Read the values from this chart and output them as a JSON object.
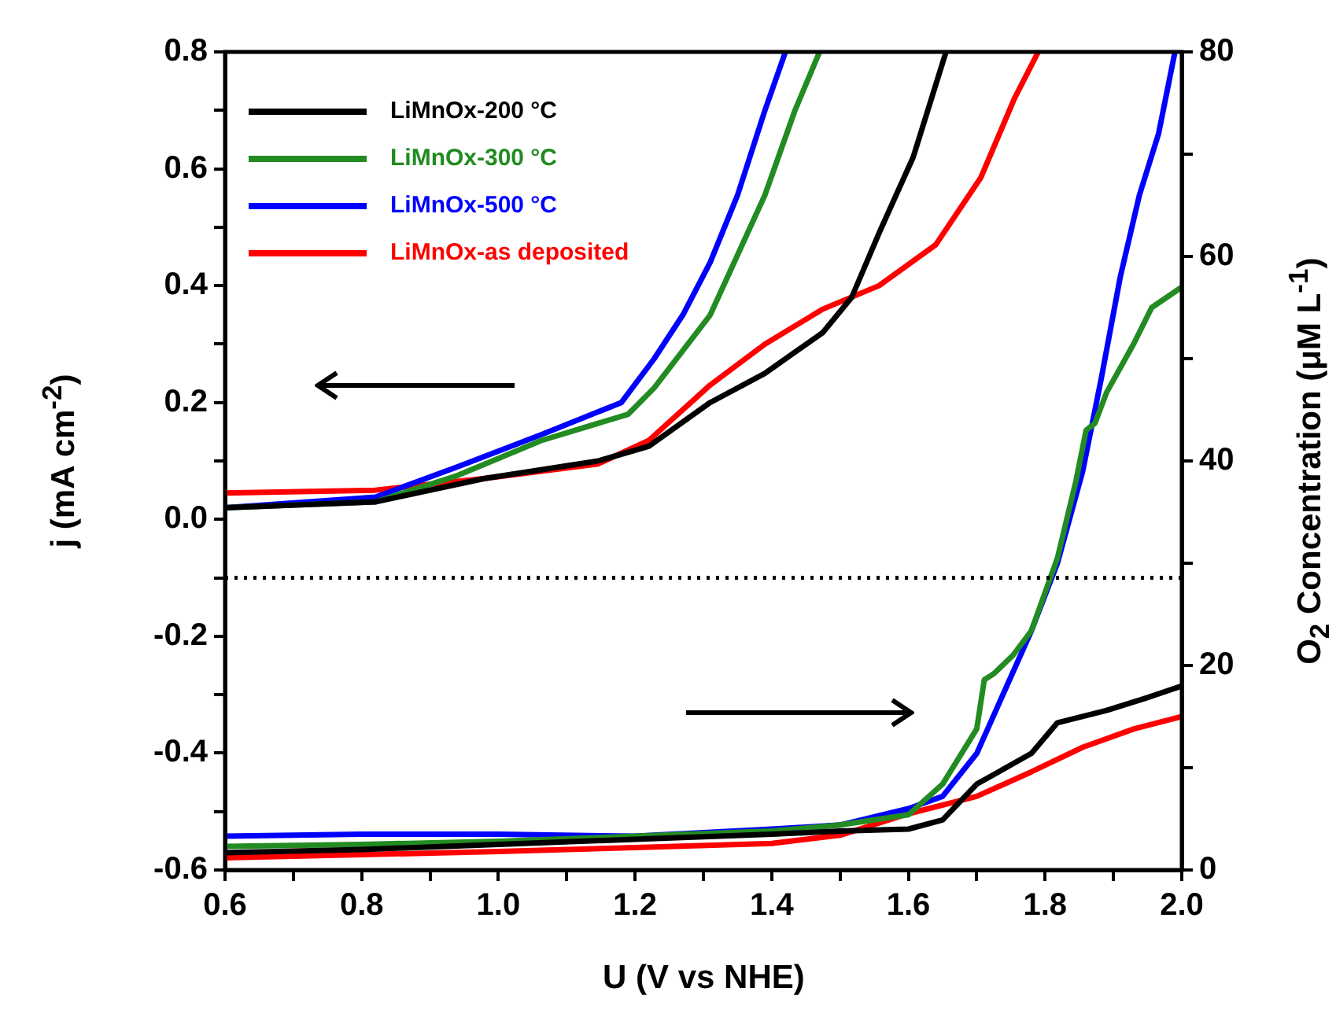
{
  "chart_data": {
    "type": "line",
    "xlabel": "U (V vs NHE)",
    "ylabel": "j (mA cm$^{-2}$)",
    "y2label": "O$_{2}$ Concentration (μM L$^{-1}$)",
    "xlim": [
      0.6,
      2.0
    ],
    "ylim": [
      -0.6,
      0.8
    ],
    "y2lim": [
      0,
      80
    ],
    "xticks": [
      0.6,
      {
        "value": 0.7,
        "label": null
      },
      0.8,
      {
        "value": 0.9,
        "label": null
      },
      {
        "value": 1.0,
        "label": "1.0"
      },
      {
        "value": 1.1,
        "label": null
      },
      1.2,
      {
        "value": 1.3,
        "label": null
      },
      1.4,
      {
        "value": 1.5,
        "label": null
      },
      1.6,
      {
        "value": 1.7,
        "label": null
      },
      1.8,
      {
        "value": 1.9,
        "label": null
      },
      {
        "value": 2.0,
        "label": "2.0"
      }
    ],
    "yticks": [
      -0.6,
      {
        "value": -0.5,
        "label": null
      },
      -0.4,
      {
        "value": -0.3,
        "label": null
      },
      -0.2,
      {
        "value": -0.1,
        "label": null
      },
      {
        "value": 0,
        "label": "0.0"
      },
      {
        "value": 0.1,
        "label": null
      },
      0.2,
      {
        "value": 0.3,
        "label": null
      },
      0.4,
      {
        "value": 0.5,
        "label": null
      },
      0.6,
      {
        "value": 0.7,
        "label": null
      },
      0.8
    ],
    "y2ticks": [
      0,
      {
        "value": 10,
        "label": null
      },
      20,
      {
        "value": 30,
        "label": null
      },
      40,
      {
        "value": 50,
        "label": null
      },
      60,
      {
        "value": 70,
        "label": null
      },
      80
    ],
    "grid": false,
    "legend": "top left",
    "marker": "none",
    "ref_lines": [
      {
        "axis": "y",
        "value": -0.1,
        "line_style": "dotted",
        "color": "#000000"
      }
    ],
    "series": [
      {
        "name": "LiMnOx-200 °C",
        "color": "#000000",
        "axis": "y",
        "x": [
          0.6,
          0.82,
          0.98,
          1.146,
          1.22,
          1.31,
          1.39,
          1.475,
          1.517,
          1.557,
          1.607,
          1.655
        ],
        "values": [
          0.02,
          0.03,
          0.07,
          0.1,
          0.125,
          0.2,
          0.25,
          0.32,
          0.38,
          0.49,
          0.62,
          0.8
        ]
      },
      {
        "name": "LiMnOx-300 °C",
        "color": "#228b22",
        "axis": "y",
        "x": [
          0.6,
          0.82,
          0.94,
          1.063,
          1.19,
          1.228,
          1.31,
          1.39,
          1.434,
          1.47
        ],
        "values": [
          0.02,
          0.03,
          0.075,
          0.135,
          0.18,
          0.225,
          0.35,
          0.555,
          0.7,
          0.8
        ]
      },
      {
        "name": "LiMnOx-500 °C",
        "color": "#0000ff",
        "axis": "y",
        "x": [
          0.6,
          0.82,
          0.94,
          1.063,
          1.18,
          1.228,
          1.27,
          1.31,
          1.35,
          1.39,
          1.42
        ],
        "values": [
          0.02,
          0.038,
          0.09,
          0.145,
          0.2,
          0.275,
          0.35,
          0.44,
          0.555,
          0.7,
          0.8
        ]
      },
      {
        "name": "LiMnOx-as deposited",
        "color": "#ff0000",
        "axis": "y",
        "x": [
          0.6,
          0.82,
          0.98,
          1.146,
          1.22,
          1.31,
          1.39,
          1.475,
          1.557,
          1.64,
          1.706,
          1.755,
          1.79
        ],
        "values": [
          0.045,
          0.05,
          0.07,
          0.095,
          0.135,
          0.23,
          0.3,
          0.36,
          0.4,
          0.47,
          0.585,
          0.72,
          0.8
        ]
      },
      {
        "color": "#000000",
        "axis": "y2",
        "x": [
          0.6,
          0.8,
          1.0,
          1.2,
          1.4,
          1.5,
          1.6,
          1.65,
          1.7,
          1.78,
          1.818,
          1.89,
          1.947,
          2.0
        ],
        "values": [
          1.7,
          2,
          2.5,
          3,
          3.5,
          3.8,
          4,
          4.9,
          8.4,
          11.4,
          14.4,
          15.6,
          16.8,
          18
        ]
      },
      {
        "color": "#228b22",
        "axis": "y2",
        "x": [
          0.6,
          0.8,
          1.0,
          1.2,
          1.4,
          1.5,
          1.6,
          1.65,
          1.7,
          1.711,
          1.725,
          1.753,
          1.78,
          1.818,
          1.845,
          1.86,
          1.873,
          1.89,
          1.93,
          1.956,
          2.0
        ],
        "values": [
          2.3,
          2.5,
          2.8,
          3.3,
          3.8,
          4.4,
          5.4,
          8.4,
          13.8,
          18.6,
          19.2,
          21,
          23.4,
          30.5,
          38,
          43,
          43.7,
          46.7,
          51.5,
          55,
          57
        ]
      },
      {
        "color": "#0000ff",
        "axis": "y2",
        "x": [
          0.6,
          0.8,
          1.0,
          1.2,
          1.4,
          1.5,
          1.6,
          1.65,
          1.7,
          1.744,
          1.78,
          1.818,
          1.855,
          1.882,
          1.91,
          1.938,
          1.966,
          1.99
        ],
        "values": [
          3.3,
          3.5,
          3.5,
          3.3,
          4,
          4.4,
          6,
          7.2,
          11.4,
          18,
          23.4,
          30,
          39,
          48,
          58,
          66,
          72,
          80
        ]
      },
      {
        "color": "#ff0000",
        "axis": "y2",
        "x": [
          0.6,
          0.8,
          1.0,
          1.2,
          1.4,
          1.5,
          1.6,
          1.7,
          1.78,
          1.855,
          1.93,
          2.0
        ],
        "values": [
          1.2,
          1.5,
          1.8,
          2.2,
          2.6,
          3.4,
          5.5,
          7.2,
          9.6,
          12,
          13.8,
          15
        ]
      }
    ]
  }
}
